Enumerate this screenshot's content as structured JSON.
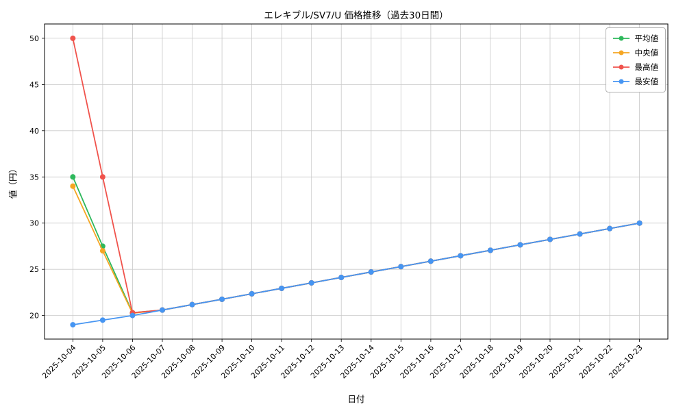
{
  "chart_data": {
    "type": "line",
    "title": "エレキブル/SV7/U 価格推移（過去30日間）",
    "xlabel": "日付",
    "ylabel": "値（円）",
    "grid": true,
    "legend_position": "upper right",
    "ylim": [
      17.45,
      51.55
    ],
    "yticks": [
      20,
      25,
      30,
      35,
      40,
      45,
      50
    ],
    "categories": [
      "2025-10-04",
      "2025-10-05",
      "2025-10-06",
      "2025-10-07",
      "2025-10-08",
      "2025-10-09",
      "2025-10-10",
      "2025-10-11",
      "2025-10-12",
      "2025-10-13",
      "2025-10-14",
      "2025-10-15",
      "2025-10-16",
      "2025-10-17",
      "2025-10-18",
      "2025-10-19",
      "2025-10-20",
      "2025-10-21",
      "2025-10-22",
      "2025-10-23"
    ],
    "series": [
      {
        "key": "average",
        "name": "平均値",
        "color": "#2eb85c",
        "values": [
          35.0,
          27.5,
          20.3,
          20.59,
          21.18,
          21.76,
          22.35,
          22.94,
          23.53,
          24.12,
          24.71,
          25.29,
          25.88,
          26.47,
          27.06,
          27.65,
          28.24,
          28.82,
          29.41,
          30.0
        ]
      },
      {
        "key": "median",
        "name": "中央値",
        "color": "#f5a623",
        "values": [
          34.0,
          27.0,
          20.25,
          20.59,
          21.18,
          21.76,
          22.35,
          22.94,
          23.53,
          24.12,
          24.71,
          25.29,
          25.88,
          26.47,
          27.06,
          27.65,
          28.24,
          28.82,
          29.41,
          30.0
        ]
      },
      {
        "key": "highest",
        "name": "最高値",
        "color": "#f0534c",
        "values": [
          50.0,
          35.0,
          20.3,
          20.59,
          21.18,
          21.76,
          22.35,
          22.94,
          23.53,
          24.12,
          24.71,
          25.29,
          25.88,
          26.47,
          27.06,
          27.65,
          28.24,
          28.82,
          29.41,
          30.0
        ]
      },
      {
        "key": "lowest",
        "name": "最安値",
        "color": "#4695f2",
        "values": [
          19.0,
          19.5,
          20.0,
          20.59,
          21.18,
          21.76,
          22.35,
          22.94,
          23.53,
          24.12,
          24.71,
          25.29,
          25.88,
          26.47,
          27.06,
          27.65,
          28.24,
          28.82,
          29.41,
          30.0
        ]
      }
    ]
  }
}
